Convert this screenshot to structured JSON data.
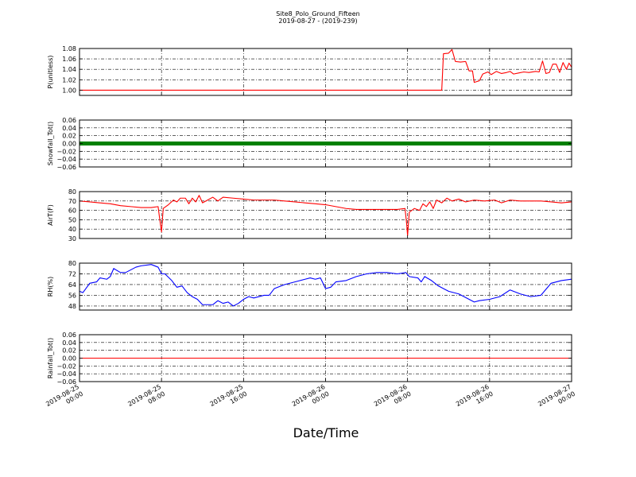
{
  "chart_data": {
    "type": "line",
    "title_line1": "Site8_Polo_Ground_Fifteen",
    "title_line2": "2019-08-27 - (2019-239)",
    "xlabel": "Date/Time",
    "x_ticks": [
      {
        "value": "2019-08-25 00:00",
        "line1": "2019-08-25",
        "line2": "00:00"
      },
      {
        "value": "2019-08-25 08:00",
        "line1": "2019-08-25",
        "line2": "08:00"
      },
      {
        "value": "2019-08-25 16:00",
        "line1": "2019-08-25",
        "line2": "16:00"
      },
      {
        "value": "2019-08-26 00:00",
        "line1": "2019-08-26",
        "line2": "00:00"
      },
      {
        "value": "2019-08-26 08:00",
        "line1": "2019-08-26",
        "line2": "08:00"
      },
      {
        "value": "2019-08-26 16:00",
        "line1": "2019-08-26",
        "line2": "16:00"
      },
      {
        "value": "2019-08-27 00:00",
        "line1": "2019-08-27",
        "line2": "00:00"
      }
    ],
    "x_range": [
      "2019-08-25 00:00",
      "2019-08-27 00:00"
    ],
    "grid": true,
    "panels": [
      {
        "ylabel": "P(unitless)",
        "ylim": [
          0.99,
          1.08
        ],
        "yticks": [
          1.0,
          1.02,
          1.04,
          1.06,
          1.08
        ],
        "ytick_labels": [
          "1.00",
          "1.02",
          "1.04",
          "1.06",
          "1.08"
        ],
        "color": "#ff0000",
        "marker": "line",
        "points": [
          [
            "2019-08-25 00:00",
            1.0
          ],
          [
            "2019-08-26 11:20",
            1.0
          ],
          [
            "2019-08-26 11:30",
            1.07
          ],
          [
            "2019-08-26 12:00",
            1.071
          ],
          [
            "2019-08-26 12:20",
            1.078
          ],
          [
            "2019-08-26 12:40",
            1.055
          ],
          [
            "2019-08-26 13:10",
            1.054
          ],
          [
            "2019-08-26 13:40",
            1.055
          ],
          [
            "2019-08-26 14:00",
            1.037
          ],
          [
            "2019-08-26 14:20",
            1.037
          ],
          [
            "2019-08-26 14:30",
            1.015
          ],
          [
            "2019-08-26 15:00",
            1.018
          ],
          [
            "2019-08-26 15:20",
            1.031
          ],
          [
            "2019-08-26 15:50",
            1.035
          ],
          [
            "2019-08-26 16:10",
            1.03
          ],
          [
            "2019-08-26 16:40",
            1.036
          ],
          [
            "2019-08-26 17:10",
            1.032
          ],
          [
            "2019-08-26 17:40",
            1.034
          ],
          [
            "2019-08-26 18:00",
            1.036
          ],
          [
            "2019-08-26 18:20",
            1.031
          ],
          [
            "2019-08-26 18:50",
            1.033
          ],
          [
            "2019-08-26 19:20",
            1.035
          ],
          [
            "2019-08-26 19:50",
            1.034
          ],
          [
            "2019-08-26 20:30",
            1.036
          ],
          [
            "2019-08-26 20:50",
            1.035
          ],
          [
            "2019-08-26 21:10",
            1.056
          ],
          [
            "2019-08-26 21:30",
            1.032
          ],
          [
            "2019-08-26 21:50",
            1.034
          ],
          [
            "2019-08-26 22:10",
            1.05
          ],
          [
            "2019-08-26 22:30",
            1.05
          ],
          [
            "2019-08-26 22:50",
            1.034
          ],
          [
            "2019-08-26 23:10",
            1.053
          ],
          [
            "2019-08-26 23:30",
            1.04
          ],
          [
            "2019-08-26 23:45",
            1.052
          ],
          [
            "2019-08-27 00:00",
            1.044
          ]
        ]
      },
      {
        "ylabel": "Snowfall_Tot()",
        "ylim": [
          -0.06,
          0.06
        ],
        "yticks": [
          -0.06,
          -0.04,
          -0.02,
          0.0,
          0.02,
          0.04,
          0.06
        ],
        "ytick_labels": [
          "−0.06",
          "−0.04",
          "−0.02",
          "0.00",
          "0.02",
          "0.04",
          "0.06"
        ],
        "color": "#008000",
        "marker": "dots",
        "points": [
          [
            "2019-08-25 00:00",
            0.0
          ],
          [
            "2019-08-27 00:00",
            0.0
          ]
        ]
      },
      {
        "ylabel": "AirT(F)",
        "ylim": [
          30,
          80
        ],
        "yticks": [
          30,
          40,
          50,
          60,
          70,
          80
        ],
        "ytick_labels": [
          "30",
          "40",
          "50",
          "60",
          "70",
          "80"
        ],
        "color": "#ff0000",
        "marker": "line",
        "points": [
          [
            "2019-08-25 00:00",
            70
          ],
          [
            "2019-08-25 01:00",
            69
          ],
          [
            "2019-08-25 02:00",
            68
          ],
          [
            "2019-08-25 03:00",
            67
          ],
          [
            "2019-08-25 04:00",
            65
          ],
          [
            "2019-08-25 05:00",
            64
          ],
          [
            "2019-08-25 06:00",
            63
          ],
          [
            "2019-08-25 07:00",
            63
          ],
          [
            "2019-08-25 07:40",
            64
          ],
          [
            "2019-08-25 07:50",
            50
          ],
          [
            "2019-08-25 08:00",
            37
          ],
          [
            "2019-08-25 08:10",
            62
          ],
          [
            "2019-08-25 08:40",
            66
          ],
          [
            "2019-08-25 09:10",
            71
          ],
          [
            "2019-08-25 09:30",
            69
          ],
          [
            "2019-08-25 09:50",
            73
          ],
          [
            "2019-08-25 10:20",
            73
          ],
          [
            "2019-08-25 10:40",
            67
          ],
          [
            "2019-08-25 11:00",
            73
          ],
          [
            "2019-08-25 11:20",
            69
          ],
          [
            "2019-08-25 11:40",
            76
          ],
          [
            "2019-08-25 12:00",
            68
          ],
          [
            "2019-08-25 12:30",
            71
          ],
          [
            "2019-08-25 13:00",
            74
          ],
          [
            "2019-08-25 13:30",
            70
          ],
          [
            "2019-08-25 14:00",
            74
          ],
          [
            "2019-08-25 15:00",
            73
          ],
          [
            "2019-08-25 16:00",
            72
          ],
          [
            "2019-08-25 17:00",
            71
          ],
          [
            "2019-08-25 18:00",
            71
          ],
          [
            "2019-08-25 19:00",
            71
          ],
          [
            "2019-08-25 20:00",
            70
          ],
          [
            "2019-08-25 21:00",
            69
          ],
          [
            "2019-08-25 22:00",
            68
          ],
          [
            "2019-08-25 23:00",
            67
          ],
          [
            "2019-08-26 00:00",
            66
          ],
          [
            "2019-08-26 01:00",
            64
          ],
          [
            "2019-08-26 02:00",
            62
          ],
          [
            "2019-08-26 03:00",
            61
          ],
          [
            "2019-08-26 04:00",
            61
          ],
          [
            "2019-08-26 05:00",
            61
          ],
          [
            "2019-08-26 06:00",
            61
          ],
          [
            "2019-08-26 07:00",
            61
          ],
          [
            "2019-08-26 07:45",
            62
          ],
          [
            "2019-08-26 07:55",
            45
          ],
          [
            "2019-08-26 08:00",
            33
          ],
          [
            "2019-08-26 08:10",
            58
          ],
          [
            "2019-08-26 08:40",
            62
          ],
          [
            "2019-08-26 09:10",
            60
          ],
          [
            "2019-08-26 09:30",
            67
          ],
          [
            "2019-08-26 09:50",
            64
          ],
          [
            "2019-08-26 10:10",
            69
          ],
          [
            "2019-08-26 10:30",
            62
          ],
          [
            "2019-08-26 10:50",
            71
          ],
          [
            "2019-08-26 11:20",
            68
          ],
          [
            "2019-08-26 11:50",
            73
          ],
          [
            "2019-08-26 12:20",
            70
          ],
          [
            "2019-08-26 13:00",
            72
          ],
          [
            "2019-08-26 13:40",
            69
          ],
          [
            "2019-08-26 14:30",
            71
          ],
          [
            "2019-08-26 15:30",
            70
          ],
          [
            "2019-08-26 16:30",
            71
          ],
          [
            "2019-08-26 17:10",
            68
          ],
          [
            "2019-08-26 18:00",
            71
          ],
          [
            "2019-08-26 19:00",
            70
          ],
          [
            "2019-08-26 20:00",
            70
          ],
          [
            "2019-08-26 21:00",
            70
          ],
          [
            "2019-08-26 22:00",
            69
          ],
          [
            "2019-08-26 23:00",
            68
          ],
          [
            "2019-08-27 00:00",
            69
          ]
        ]
      },
      {
        "ylabel": "RH(%)",
        "ylim": [
          45,
          80
        ],
        "yticks": [
          48,
          56,
          64,
          72,
          80
        ],
        "ytick_labels": [
          "48",
          "56",
          "64",
          "72",
          "80"
        ],
        "color": "#0000ff",
        "marker": "line",
        "points": [
          [
            "2019-08-25 00:00",
            59
          ],
          [
            "2019-08-25 00:20",
            58
          ],
          [
            "2019-08-25 01:00",
            65
          ],
          [
            "2019-08-25 01:40",
            66
          ],
          [
            "2019-08-25 02:00",
            69
          ],
          [
            "2019-08-25 02:40",
            68
          ],
          [
            "2019-08-25 03:00",
            70
          ],
          [
            "2019-08-25 03:20",
            76
          ],
          [
            "2019-08-25 04:00",
            73
          ],
          [
            "2019-08-25 04:30",
            73
          ],
          [
            "2019-08-25 05:00",
            75
          ],
          [
            "2019-08-25 05:30",
            77
          ],
          [
            "2019-08-25 06:00",
            78
          ],
          [
            "2019-08-25 07:00",
            79
          ],
          [
            "2019-08-25 07:40",
            77
          ],
          [
            "2019-08-25 08:00",
            72
          ],
          [
            "2019-08-25 08:20",
            72
          ],
          [
            "2019-08-25 09:00",
            67
          ],
          [
            "2019-08-25 09:30",
            62
          ],
          [
            "2019-08-25 10:00",
            63
          ],
          [
            "2019-08-25 10:30",
            58
          ],
          [
            "2019-08-25 11:00",
            55
          ],
          [
            "2019-08-25 11:30",
            53
          ],
          [
            "2019-08-25 12:00",
            49
          ],
          [
            "2019-08-25 12:30",
            49
          ],
          [
            "2019-08-25 13:00",
            49
          ],
          [
            "2019-08-25 13:30",
            52
          ],
          [
            "2019-08-25 14:00",
            50
          ],
          [
            "2019-08-25 14:30",
            51
          ],
          [
            "2019-08-25 15:00",
            48
          ],
          [
            "2019-08-25 15:30",
            50
          ],
          [
            "2019-08-25 16:00",
            53
          ],
          [
            "2019-08-25 16:30",
            55
          ],
          [
            "2019-08-25 17:00",
            54
          ],
          [
            "2019-08-25 18:00",
            56
          ],
          [
            "2019-08-25 18:30",
            56
          ],
          [
            "2019-08-25 19:00",
            61
          ],
          [
            "2019-08-25 20:00",
            64
          ],
          [
            "2019-08-25 21:00",
            66
          ],
          [
            "2019-08-25 22:00",
            68
          ],
          [
            "2019-08-25 22:30",
            69
          ],
          [
            "2019-08-25 23:00",
            68
          ],
          [
            "2019-08-25 23:30",
            69
          ],
          [
            "2019-08-26 00:00",
            61
          ],
          [
            "2019-08-26 00:30",
            62
          ],
          [
            "2019-08-26 01:00",
            66
          ],
          [
            "2019-08-26 02:00",
            67
          ],
          [
            "2019-08-26 03:00",
            70
          ],
          [
            "2019-08-26 04:00",
            72
          ],
          [
            "2019-08-26 05:00",
            73
          ],
          [
            "2019-08-26 06:00",
            73
          ],
          [
            "2019-08-26 07:00",
            72
          ],
          [
            "2019-08-26 07:50",
            73
          ],
          [
            "2019-08-26 08:10",
            70
          ],
          [
            "2019-08-26 09:00",
            69
          ],
          [
            "2019-08-26 09:20",
            66
          ],
          [
            "2019-08-26 09:40",
            70
          ],
          [
            "2019-08-26 10:20",
            67
          ],
          [
            "2019-08-26 11:00",
            63
          ],
          [
            "2019-08-26 12:00",
            59
          ],
          [
            "2019-08-26 13:00",
            57
          ],
          [
            "2019-08-26 14:00",
            53
          ],
          [
            "2019-08-26 14:30",
            51
          ],
          [
            "2019-08-26 15:00",
            52
          ],
          [
            "2019-08-26 16:00",
            53
          ],
          [
            "2019-08-26 17:00",
            55
          ],
          [
            "2019-08-26 18:00",
            60
          ],
          [
            "2019-08-26 19:00",
            57
          ],
          [
            "2019-08-26 20:00",
            55
          ],
          [
            "2019-08-26 21:00",
            56
          ],
          [
            "2019-08-26 22:00",
            65
          ],
          [
            "2019-08-26 23:00",
            67
          ],
          [
            "2019-08-27 00:00",
            68
          ]
        ]
      },
      {
        "ylabel": "Rainfall_Tot()",
        "ylim": [
          -0.06,
          0.06
        ],
        "yticks": [
          -0.06,
          -0.04,
          -0.02,
          0.0,
          0.02,
          0.04,
          0.06
        ],
        "ytick_labels": [
          "−0.06",
          "−0.04",
          "−0.02",
          "0.00",
          "0.02",
          "0.04",
          "0.06"
        ],
        "color": "#ff0000",
        "marker": "line",
        "points": [
          [
            "2019-08-25 00:00",
            0.0
          ],
          [
            "2019-08-27 00:00",
            0.0
          ]
        ]
      }
    ]
  }
}
